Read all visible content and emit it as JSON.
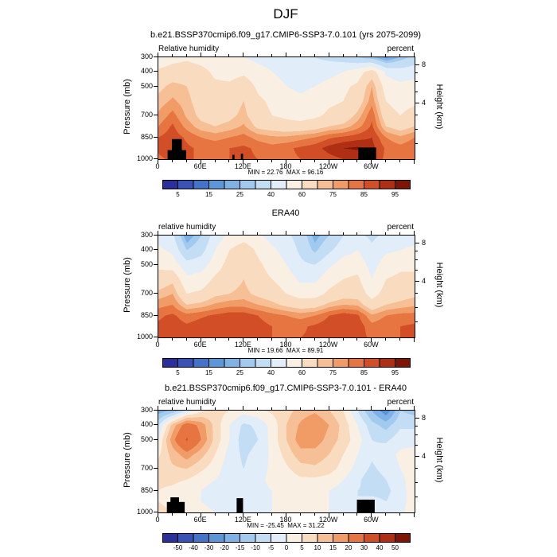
{
  "figure": {
    "title": "DJF"
  },
  "chart_data": {
    "type": "heatmap",
    "description": "DJF longitude-pressure cross sections of relative humidity: CESM scenario run, ERA40 reanalysis, and model minus ERA40 difference",
    "x_axis": {
      "tick_lons": [
        0,
        60,
        120,
        180,
        240,
        300
      ],
      "tick_labels": [
        "0",
        "60E",
        "120E",
        "180",
        "120W",
        "60W"
      ],
      "range_deg": [
        0,
        360
      ]
    },
    "y_left": {
      "title": "Pressure (mb)",
      "ticks": [
        300,
        400,
        500,
        700,
        850,
        1000
      ],
      "range": [
        300,
        1000
      ]
    },
    "y_right": {
      "title": "Height (km)",
      "major_ticks": [
        8,
        4
      ],
      "minor_ticks": [
        7,
        6,
        5,
        3,
        2,
        1
      ]
    },
    "lon": [
      0,
      20,
      40,
      60,
      80,
      100,
      120,
      140,
      160,
      180,
      200,
      220,
      240,
      260,
      280,
      300,
      320,
      340,
      360
    ],
    "pressure_levels": [
      300,
      400,
      500,
      600,
      700,
      775,
      850,
      925,
      1000
    ],
    "colors": [
      "#2a2f9c",
      "#3952b5",
      "#4474c9",
      "#5d95d9",
      "#7eb2e6",
      "#a1caee",
      "#c3ddf4",
      "#e1edf8",
      "#faefe3",
      "#f9dcc0",
      "#f7bf95",
      "#f19b67",
      "#e77542",
      "#d14e26",
      "#ae2f14",
      "#7e1507"
    ],
    "panels": [
      {
        "title": "b.e21.BSSP370cmip6.f09_g17.CMIP6-SSP3-7.0.101 (yrs 2075-2099)",
        "field_label": "Relative humidity",
        "units_label": "percent",
        "stats": "MIN = 22.76  MAX = 96.16",
        "min": 22.76,
        "max": 96.16,
        "levels": [
          5,
          10,
          15,
          20,
          25,
          30,
          40,
          50,
          60,
          70,
          75,
          80,
          85,
          90,
          95
        ],
        "colorbar_tick_labels": [
          "5",
          "",
          "15",
          "",
          "25",
          "",
          "40",
          "",
          "60",
          "",
          "75",
          "",
          "85",
          "",
          "95"
        ],
        "grid": [
          [
            52,
            56,
            58,
            56,
            54,
            52,
            50,
            47,
            45,
            44,
            42,
            40,
            38,
            35,
            30,
            26,
            18,
            26,
            33
          ],
          [
            62,
            65,
            66,
            63,
            58,
            56,
            58,
            54,
            50,
            47,
            45,
            44,
            46,
            50,
            55,
            65,
            48,
            45,
            46
          ],
          [
            68,
            72,
            70,
            65,
            62,
            62,
            66,
            58,
            54,
            50,
            48,
            50,
            54,
            58,
            62,
            75,
            55,
            52,
            54
          ],
          [
            72,
            76,
            72,
            66,
            64,
            66,
            70,
            62,
            58,
            54,
            52,
            54,
            58,
            60,
            65,
            78,
            60,
            56,
            58
          ],
          [
            76,
            82,
            74,
            68,
            66,
            68,
            72,
            64,
            60,
            58,
            56,
            58,
            62,
            64,
            72,
            84,
            64,
            60,
            64
          ],
          [
            80,
            86,
            78,
            72,
            70,
            72,
            76,
            68,
            66,
            64,
            64,
            66,
            70,
            72,
            78,
            86,
            70,
            66,
            70
          ],
          [
            85,
            88,
            84,
            80,
            78,
            80,
            82,
            78,
            76,
            76,
            78,
            80,
            84,
            86,
            88,
            90,
            80,
            76,
            80
          ],
          [
            86,
            88,
            86,
            84,
            84,
            85,
            86,
            84,
            82,
            84,
            86,
            88,
            92,
            95,
            96,
            92,
            84,
            82,
            84
          ],
          [
            84,
            86,
            86,
            84,
            84,
            85,
            86,
            85,
            83,
            84,
            85,
            86,
            88,
            90,
            90,
            88,
            84,
            82,
            84
          ]
        ],
        "topo": [
          {
            "lon0": 13,
            "lon1": 39,
            "ptop": 938
          },
          {
            "lon0": 19,
            "lon1": 33,
            "ptop": 862
          },
          {
            "lon0": 104,
            "lon1": 107,
            "ptop": 970
          },
          {
            "lon0": 116,
            "lon1": 119,
            "ptop": 962
          },
          {
            "lon0": 281,
            "lon1": 306,
            "ptop": 920
          }
        ]
      },
      {
        "title": "ERA40",
        "field_label": "relative humidity",
        "units_label": "percent",
        "stats": "MIN = 19.66  MAX = 89.91",
        "min": 19.66,
        "max": 89.91,
        "levels": [
          5,
          10,
          15,
          20,
          25,
          30,
          40,
          50,
          60,
          70,
          75,
          80,
          85,
          90,
          95
        ],
        "colorbar_tick_labels": [
          "5",
          "",
          "15",
          "",
          "25",
          "",
          "40",
          "",
          "60",
          "",
          "75",
          "",
          "85",
          "",
          "95"
        ],
        "grid": [
          [
            46,
            42,
            20,
            30,
            45,
            52,
            55,
            52,
            46,
            42,
            36,
            22,
            30,
            40,
            42,
            38,
            42,
            45,
            46
          ],
          [
            52,
            48,
            30,
            36,
            50,
            60,
            66,
            58,
            52,
            46,
            38,
            28,
            38,
            46,
            50,
            42,
            48,
            50,
            52
          ],
          [
            58,
            55,
            44,
            46,
            55,
            64,
            68,
            62,
            56,
            50,
            42,
            40,
            48,
            55,
            56,
            46,
            55,
            58,
            58
          ],
          [
            64,
            68,
            52,
            54,
            62,
            66,
            70,
            64,
            60,
            55,
            48,
            48,
            56,
            60,
            62,
            50,
            60,
            62,
            62
          ],
          [
            72,
            75,
            60,
            62,
            68,
            70,
            72,
            68,
            65,
            60,
            56,
            56,
            62,
            66,
            66,
            56,
            64,
            66,
            68
          ],
          [
            78,
            80,
            70,
            72,
            76,
            78,
            78,
            75,
            72,
            68,
            65,
            66,
            72,
            75,
            74,
            64,
            70,
            72,
            74
          ],
          [
            84,
            86,
            82,
            84,
            86,
            88,
            88,
            85,
            82,
            80,
            78,
            80,
            85,
            88,
            86,
            76,
            80,
            82,
            82
          ],
          [
            86,
            88,
            86,
            88,
            89,
            89,
            89,
            87,
            85,
            84,
            84,
            86,
            88,
            89,
            88,
            82,
            84,
            85,
            86
          ],
          [
            85,
            87,
            86,
            88,
            88,
            88,
            88,
            87,
            85,
            85,
            85,
            86,
            88,
            88,
            87,
            84,
            85,
            85,
            85
          ]
        ],
        "topo": []
      },
      {
        "title": "b.e21.BSSP370cmip6.f09_g17.CMIP6-SSP3-7.0.101 - ERA40",
        "field_label": "relative humidity",
        "units_label": "percent",
        "stats": "MIN = -25.45  MAX = 31.22",
        "min": -25.45,
        "max": 31.22,
        "levels": [
          -50,
          -40,
          -30,
          -20,
          -15,
          -10,
          -5,
          0,
          5,
          10,
          15,
          20,
          30,
          40,
          50
        ],
        "colorbar_tick_labels": [
          "-50",
          "-40",
          "-30",
          "-20",
          "-15",
          "-10",
          "-5",
          "0",
          "5",
          "10",
          "15",
          "20",
          "30",
          "40",
          "50"
        ],
        "grid": [
          [
            -18,
            -14,
            -4,
            4,
            7,
            5,
            2,
            4,
            6,
            8,
            12,
            14,
            10,
            5,
            -5,
            -15,
            -24,
            -10,
            -12
          ],
          [
            -6,
            12,
            24,
            18,
            8,
            0,
            -6,
            -4,
            2,
            10,
            16,
            20,
            15,
            8,
            0,
            -8,
            -12,
            -6,
            -6
          ],
          [
            0,
            18,
            31,
            20,
            8,
            0,
            -8,
            -5,
            2,
            10,
            18,
            18,
            13,
            8,
            2,
            -5,
            -6,
            -2,
            -2
          ],
          [
            4,
            12,
            18,
            12,
            5,
            -2,
            -6,
            -3,
            1,
            7,
            13,
            13,
            10,
            5,
            0,
            -4,
            -2,
            1,
            2
          ],
          [
            7,
            9,
            10,
            6,
            2,
            -3,
            -5,
            -2,
            1,
            4,
            8,
            9,
            7,
            3,
            -2,
            -6,
            -3,
            0,
            4
          ],
          [
            6,
            6,
            5,
            2,
            0,
            -2,
            -3,
            -1,
            1,
            2,
            4,
            4,
            3,
            0,
            -4,
            -8,
            -5,
            -2,
            4
          ],
          [
            5,
            4,
            2,
            0,
            -2,
            -2,
            -2,
            -1,
            0,
            1,
            2,
            1,
            0,
            -2,
            -5,
            -6,
            -6,
            -3,
            4
          ],
          [
            5,
            4,
            2,
            0,
            -1,
            -1,
            -2,
            -1,
            0,
            1,
            1,
            0,
            0,
            -2,
            -5,
            -4,
            -5,
            -3,
            4
          ],
          [
            6,
            5,
            3,
            1,
            0,
            0,
            -1,
            0,
            0,
            1,
            1,
            0,
            0,
            -1,
            -3,
            -3,
            -4,
            -2,
            5
          ]
        ],
        "topo": [
          {
            "lon0": 12,
            "lon1": 37,
            "ptop": 928
          },
          {
            "lon0": 17,
            "lon1": 29,
            "ptop": 896
          },
          {
            "lon0": 110,
            "lon1": 119,
            "ptop": 902
          },
          {
            "lon0": 279,
            "lon1": 304,
            "ptop": 912
          }
        ]
      }
    ]
  }
}
